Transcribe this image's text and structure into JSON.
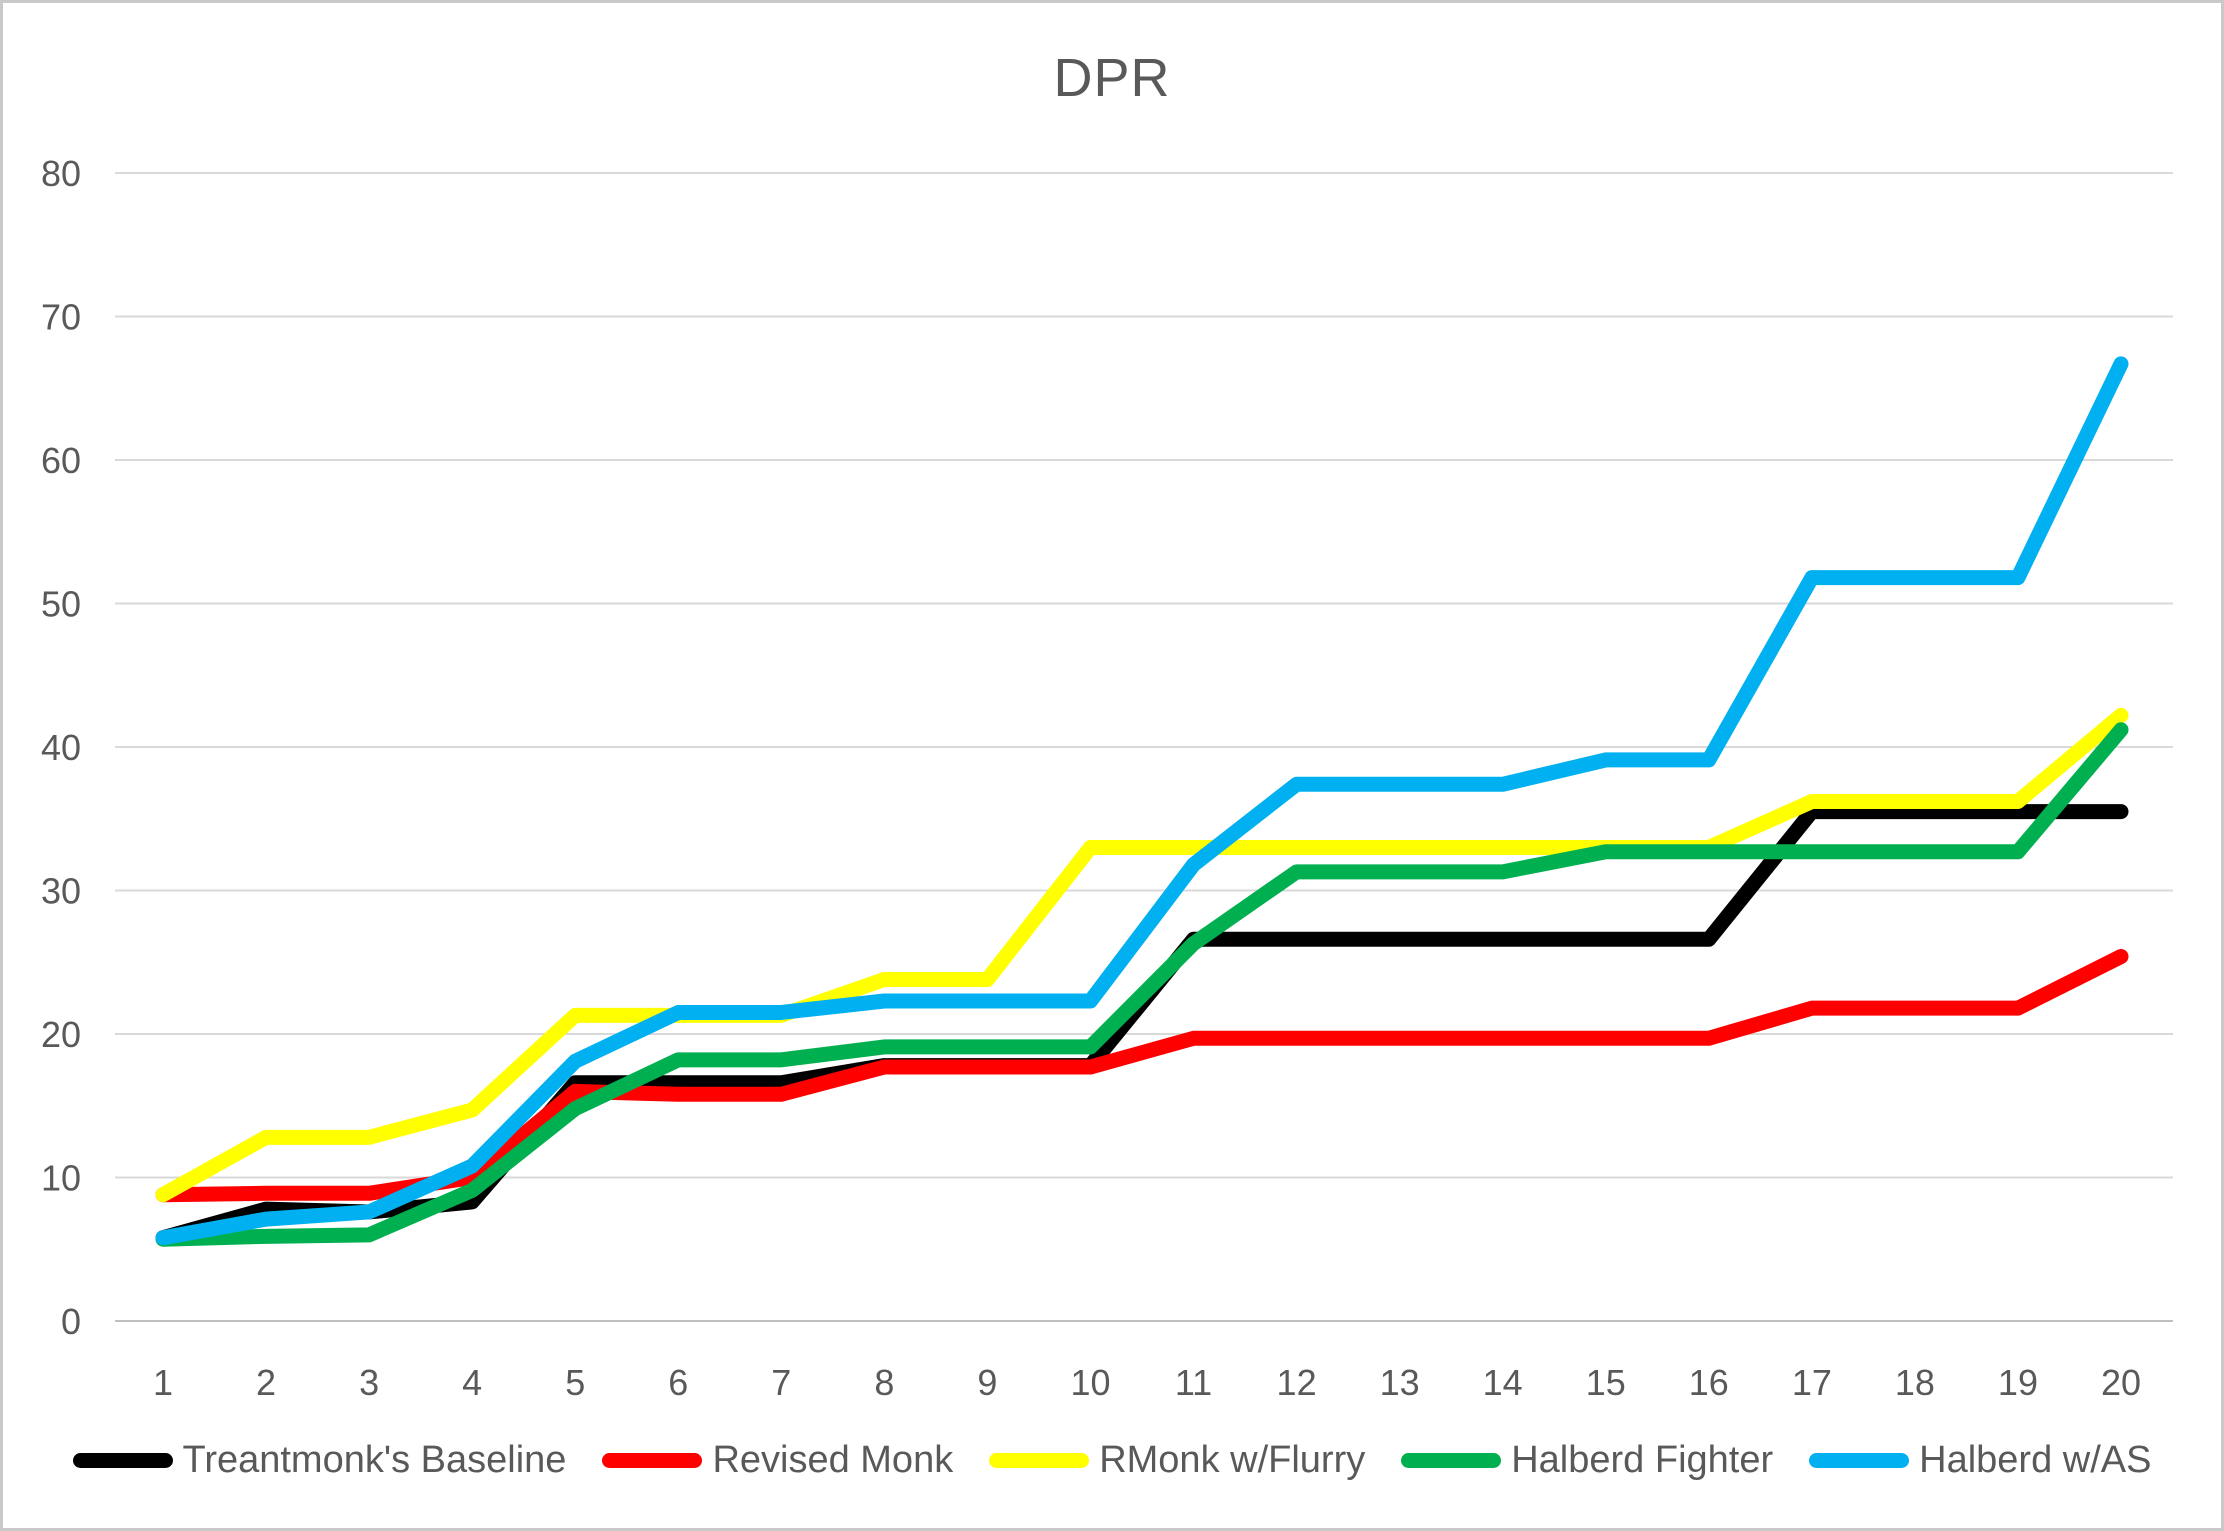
{
  "chart_data": {
    "type": "line",
    "title": "DPR",
    "xlabel": "",
    "ylabel": "",
    "x": [
      1,
      2,
      3,
      4,
      5,
      6,
      7,
      8,
      9,
      10,
      11,
      12,
      13,
      14,
      15,
      16,
      17,
      18,
      19,
      20
    ],
    "y_ticks": [
      0,
      10,
      20,
      30,
      40,
      50,
      60,
      70,
      80
    ],
    "ylim": [
      0,
      80
    ],
    "grid": "horizontal",
    "legend_position": "bottom",
    "series": [
      {
        "name": "Treantmonk's Baseline",
        "color": "#000000",
        "values": [
          5.8,
          7.8,
          7.6,
          8.3,
          16.6,
          16.6,
          16.6,
          17.8,
          17.8,
          17.8,
          26.6,
          26.6,
          26.6,
          26.6,
          26.6,
          26.6,
          35.5,
          35.5,
          35.5,
          35.5
        ]
      },
      {
        "name": "Revised Monk",
        "color": "#FF0000",
        "values": [
          8.8,
          8.9,
          8.9,
          10.0,
          16.0,
          15.8,
          15.8,
          17.7,
          17.7,
          17.7,
          19.7,
          19.7,
          19.7,
          19.7,
          19.7,
          19.7,
          21.8,
          21.8,
          21.8,
          25.4
        ]
      },
      {
        "name": "RMonk w/Flurry",
        "color": "#FFFF00",
        "values": [
          8.8,
          12.8,
          12.8,
          14.7,
          21.3,
          21.3,
          21.3,
          23.8,
          23.8,
          33.0,
          33.0,
          33.0,
          33.0,
          33.0,
          33.0,
          33.0,
          36.2,
          36.2,
          36.2,
          42.2
        ]
      },
      {
        "name": "Halberd Fighter",
        "color": "#00B050",
        "values": [
          5.7,
          5.9,
          6.0,
          9.1,
          14.8,
          18.2,
          18.2,
          19.1,
          19.1,
          19.1,
          26.3,
          31.3,
          31.3,
          31.3,
          32.7,
          32.7,
          32.7,
          32.7,
          32.7,
          41.2
        ]
      },
      {
        "name": "Halberd w/AS",
        "color": "#00B0F0",
        "values": [
          5.8,
          7.1,
          7.6,
          10.8,
          18.1,
          21.5,
          21.5,
          22.3,
          22.3,
          22.3,
          31.8,
          37.4,
          37.4,
          37.4,
          39.1,
          39.1,
          51.8,
          51.8,
          51.8,
          66.7
        ]
      }
    ]
  },
  "colors": {
    "grid": "#D9D9D9",
    "axis_line": "#BFBFBF",
    "text": "#595959",
    "background": "#FFFFFF",
    "border": "#C9C9C9"
  }
}
